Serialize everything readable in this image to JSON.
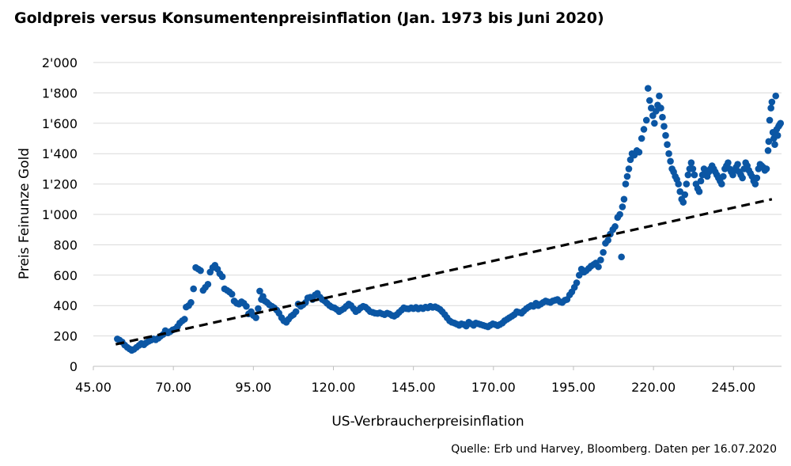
{
  "chart_data": {
    "type": "scatter",
    "title": "Goldpreis versus Konsumentenpreisinflation (Jan. 1973 bis Juni 2020)",
    "xlabel": "US-Verbraucherpreisinflation",
    "ylabel": "Preis Feinunze Gold",
    "source": "Quelle: Erb und Harvey, Bloomberg. Daten per 16.07.2020",
    "xlim": [
      45,
      260
    ],
    "ylim": [
      0,
      2000
    ],
    "x_ticks": [
      45,
      70,
      95,
      120,
      145,
      170,
      195,
      220,
      245
    ],
    "x_tick_labels": [
      "45.00",
      "70.00",
      "95.00",
      "120.00",
      "145.00",
      "170.00",
      "195.00",
      "220.00",
      "245.00"
    ],
    "y_ticks": [
      0,
      200,
      400,
      600,
      800,
      1000,
      1200,
      1400,
      1600,
      1800,
      2000
    ],
    "y_tick_labels": [
      "0",
      "200",
      "400",
      "600",
      "800",
      "1'000",
      "1'200",
      "1'400",
      "1'600",
      "1'800",
      "2'000"
    ],
    "grid": "horizontal",
    "marker_color": "#0b56a4",
    "trendline": {
      "style": "dashed",
      "color": "#000000",
      "x": [
        52,
        257
      ],
      "y": [
        145,
        1100
      ]
    },
    "points": [
      [
        52.5,
        180
      ],
      [
        53.2,
        172
      ],
      [
        54.0,
        160
      ],
      [
        54.8,
        140
      ],
      [
        55.6,
        125
      ],
      [
        56.3,
        115
      ],
      [
        57.0,
        105
      ],
      [
        57.7,
        112
      ],
      [
        58.5,
        125
      ],
      [
        59.3,
        138
      ],
      [
        60.0,
        150
      ],
      [
        60.8,
        142
      ],
      [
        61.5,
        155
      ],
      [
        62.3,
        165
      ],
      [
        63.0,
        172
      ],
      [
        63.8,
        180
      ],
      [
        64.5,
        175
      ],
      [
        65.3,
        185
      ],
      [
        66.0,
        198
      ],
      [
        66.8,
        210
      ],
      [
        67.5,
        235
      ],
      [
        68.3,
        220
      ],
      [
        69.0,
        228
      ],
      [
        69.8,
        240
      ],
      [
        70.5,
        245
      ],
      [
        71.3,
        262
      ],
      [
        72.0,
        285
      ],
      [
        72.8,
        300
      ],
      [
        73.5,
        310
      ],
      [
        74.0,
        390
      ],
      [
        74.8,
        400
      ],
      [
        75.5,
        420
      ],
      [
        76.3,
        510
      ],
      [
        77.0,
        650
      ],
      [
        77.8,
        640
      ],
      [
        78.5,
        630
      ],
      [
        79.3,
        500
      ],
      [
        80.0,
        520
      ],
      [
        80.8,
        540
      ],
      [
        81.5,
        620
      ],
      [
        82.3,
        650
      ],
      [
        83.0,
        665
      ],
      [
        83.8,
        640
      ],
      [
        84.5,
        610
      ],
      [
        85.3,
        590
      ],
      [
        86.0,
        510
      ],
      [
        86.8,
        500
      ],
      [
        87.5,
        490
      ],
      [
        88.3,
        475
      ],
      [
        89.0,
        430
      ],
      [
        89.8,
        415
      ],
      [
        90.5,
        410
      ],
      [
        91.3,
        425
      ],
      [
        92.0,
        415
      ],
      [
        92.8,
        395
      ],
      [
        93.5,
        345
      ],
      [
        94.3,
        360
      ],
      [
        95.0,
        335
      ],
      [
        95.8,
        320
      ],
      [
        96.5,
        380
      ],
      [
        97.0,
        495
      ],
      [
        97.5,
        440
      ],
      [
        98.0,
        460
      ],
      [
        98.6,
        430
      ],
      [
        99.3,
        420
      ],
      [
        100.0,
        405
      ],
      [
        100.8,
        395
      ],
      [
        101.5,
        385
      ],
      [
        102.3,
        370
      ],
      [
        103.0,
        350
      ],
      [
        103.8,
        320
      ],
      [
        104.5,
        300
      ],
      [
        105.3,
        290
      ],
      [
        106.0,
        310
      ],
      [
        106.8,
        330
      ],
      [
        107.5,
        340
      ],
      [
        108.3,
        360
      ],
      [
        109.0,
        410
      ],
      [
        109.8,
        395
      ],
      [
        110.5,
        405
      ],
      [
        111.3,
        420
      ],
      [
        112.0,
        450
      ],
      [
        112.8,
        455
      ],
      [
        113.5,
        440
      ],
      [
        114.3,
        470
      ],
      [
        115.0,
        480
      ],
      [
        115.8,
        455
      ],
      [
        116.5,
        440
      ],
      [
        117.3,
        430
      ],
      [
        118.0,
        415
      ],
      [
        118.8,
        400
      ],
      [
        119.5,
        390
      ],
      [
        120.3,
        385
      ],
      [
        121.0,
        375
      ],
      [
        121.8,
        360
      ],
      [
        122.5,
        370
      ],
      [
        123.3,
        380
      ],
      [
        124.0,
        395
      ],
      [
        124.8,
        410
      ],
      [
        125.5,
        400
      ],
      [
        126.3,
        380
      ],
      [
        127.0,
        360
      ],
      [
        127.8,
        370
      ],
      [
        128.5,
        385
      ],
      [
        129.3,
        395
      ],
      [
        130.0,
        390
      ],
      [
        130.8,
        375
      ],
      [
        131.5,
        360
      ],
      [
        132.3,
        355
      ],
      [
        133.0,
        350
      ],
      [
        133.8,
        348
      ],
      [
        134.5,
        352
      ],
      [
        135.3,
        345
      ],
      [
        136.0,
        340
      ],
      [
        136.8,
        350
      ],
      [
        137.5,
        345
      ],
      [
        138.3,
        335
      ],
      [
        139.0,
        330
      ],
      [
        139.8,
        340
      ],
      [
        140.5,
        355
      ],
      [
        141.3,
        370
      ],
      [
        142.0,
        385
      ],
      [
        142.8,
        380
      ],
      [
        143.5,
        378
      ],
      [
        144.3,
        385
      ],
      [
        145.0,
        380
      ],
      [
        145.8,
        388
      ],
      [
        146.5,
        378
      ],
      [
        147.3,
        385
      ],
      [
        148.0,
        380
      ],
      [
        148.8,
        390
      ],
      [
        149.5,
        385
      ],
      [
        150.3,
        395
      ],
      [
        151.0,
        388
      ],
      [
        151.8,
        392
      ],
      [
        152.5,
        385
      ],
      [
        153.3,
        375
      ],
      [
        154.0,
        360
      ],
      [
        154.8,
        340
      ],
      [
        155.5,
        320
      ],
      [
        156.3,
        300
      ],
      [
        157.0,
        290
      ],
      [
        157.8,
        285
      ],
      [
        158.5,
        278
      ],
      [
        159.3,
        270
      ],
      [
        160.0,
        280
      ],
      [
        160.8,
        275
      ],
      [
        161.5,
        265
      ],
      [
        162.3,
        290
      ],
      [
        163.0,
        280
      ],
      [
        163.8,
        270
      ],
      [
        164.5,
        285
      ],
      [
        165.3,
        280
      ],
      [
        166.0,
        275
      ],
      [
        166.8,
        270
      ],
      [
        167.5,
        265
      ],
      [
        168.3,
        260
      ],
      [
        169.0,
        270
      ],
      [
        169.8,
        280
      ],
      [
        170.5,
        275
      ],
      [
        171.3,
        268
      ],
      [
        172.0,
        275
      ],
      [
        172.8,
        285
      ],
      [
        173.5,
        300
      ],
      [
        174.3,
        310
      ],
      [
        175.0,
        320
      ],
      [
        175.8,
        330
      ],
      [
        176.5,
        340
      ],
      [
        177.3,
        360
      ],
      [
        178.0,
        355
      ],
      [
        178.8,
        350
      ],
      [
        179.5,
        365
      ],
      [
        180.3,
        380
      ],
      [
        181.0,
        390
      ],
      [
        181.8,
        400
      ],
      [
        182.5,
        395
      ],
      [
        183.3,
        415
      ],
      [
        184.0,
        400
      ],
      [
        184.8,
        410
      ],
      [
        185.5,
        420
      ],
      [
        186.3,
        430
      ],
      [
        187.0,
        425
      ],
      [
        187.8,
        420
      ],
      [
        188.5,
        430
      ],
      [
        189.3,
        435
      ],
      [
        190.0,
        440
      ],
      [
        190.8,
        425
      ],
      [
        191.5,
        420
      ],
      [
        192.3,
        435
      ],
      [
        193.0,
        440
      ],
      [
        193.8,
        470
      ],
      [
        194.5,
        490
      ],
      [
        195.3,
        520
      ],
      [
        196.0,
        550
      ],
      [
        196.8,
        600
      ],
      [
        197.5,
        640
      ],
      [
        198.3,
        620
      ],
      [
        199.0,
        630
      ],
      [
        199.8,
        645
      ],
      [
        200.5,
        660
      ],
      [
        201.3,
        670
      ],
      [
        202.0,
        680
      ],
      [
        202.8,
        655
      ],
      [
        203.5,
        700
      ],
      [
        204.3,
        750
      ],
      [
        205.0,
        810
      ],
      [
        205.8,
        830
      ],
      [
        206.5,
        870
      ],
      [
        207.3,
        900
      ],
      [
        208.0,
        920
      ],
      [
        208.8,
        980
      ],
      [
        209.5,
        1000
      ],
      [
        210.0,
        720
      ],
      [
        210.3,
        1050
      ],
      [
        210.8,
        1100
      ],
      [
        211.3,
        1200
      ],
      [
        211.8,
        1250
      ],
      [
        212.3,
        1300
      ],
      [
        212.8,
        1360
      ],
      [
        213.3,
        1400
      ],
      [
        214.0,
        1390
      ],
      [
        214.8,
        1420
      ],
      [
        215.5,
        1410
      ],
      [
        216.3,
        1500
      ],
      [
        217.0,
        1560
      ],
      [
        217.8,
        1620
      ],
      [
        218.3,
        1830
      ],
      [
        218.8,
        1750
      ],
      [
        219.3,
        1700
      ],
      [
        219.8,
        1650
      ],
      [
        220.3,
        1600
      ],
      [
        220.8,
        1680
      ],
      [
        221.3,
        1720
      ],
      [
        221.8,
        1780
      ],
      [
        222.3,
        1700
      ],
      [
        222.8,
        1640
      ],
      [
        223.3,
        1580
      ],
      [
        223.8,
        1520
      ],
      [
        224.3,
        1460
      ],
      [
        224.8,
        1400
      ],
      [
        225.3,
        1350
      ],
      [
        225.8,
        1300
      ],
      [
        226.3,
        1280
      ],
      [
        226.8,
        1250
      ],
      [
        227.3,
        1230
      ],
      [
        227.8,
        1200
      ],
      [
        228.3,
        1150
      ],
      [
        228.8,
        1100
      ],
      [
        229.3,
        1080
      ],
      [
        229.8,
        1130
      ],
      [
        230.3,
        1200
      ],
      [
        230.8,
        1260
      ],
      [
        231.3,
        1300
      ],
      [
        231.8,
        1340
      ],
      [
        232.3,
        1300
      ],
      [
        232.8,
        1260
      ],
      [
        233.3,
        1200
      ],
      [
        233.8,
        1170
      ],
      [
        234.3,
        1150
      ],
      [
        234.8,
        1220
      ],
      [
        235.3,
        1260
      ],
      [
        235.8,
        1300
      ],
      [
        236.3,
        1270
      ],
      [
        236.8,
        1250
      ],
      [
        237.3,
        1280
      ],
      [
        237.8,
        1300
      ],
      [
        238.3,
        1320
      ],
      [
        238.8,
        1300
      ],
      [
        239.3,
        1280
      ],
      [
        239.8,
        1260
      ],
      [
        240.3,
        1240
      ],
      [
        240.8,
        1220
      ],
      [
        241.3,
        1200
      ],
      [
        241.8,
        1250
      ],
      [
        242.3,
        1300
      ],
      [
        242.8,
        1320
      ],
      [
        243.3,
        1340
      ],
      [
        243.8,
        1300
      ],
      [
        244.3,
        1280
      ],
      [
        244.8,
        1260
      ],
      [
        245.3,
        1290
      ],
      [
        245.8,
        1310
      ],
      [
        246.3,
        1330
      ],
      [
        246.8,
        1280
      ],
      [
        247.3,
        1260
      ],
      [
        247.8,
        1240
      ],
      [
        248.3,
        1300
      ],
      [
        248.8,
        1340
      ],
      [
        249.3,
        1320
      ],
      [
        249.8,
        1290
      ],
      [
        250.3,
        1270
      ],
      [
        250.8,
        1250
      ],
      [
        251.3,
        1220
      ],
      [
        251.8,
        1200
      ],
      [
        252.3,
        1240
      ],
      [
        252.8,
        1300
      ],
      [
        253.3,
        1330
      ],
      [
        253.8,
        1320
      ],
      [
        254.3,
        1310
      ],
      [
        254.8,
        1290
      ],
      [
        255.3,
        1300
      ],
      [
        255.8,
        1420
      ],
      [
        256.0,
        1480
      ],
      [
        256.3,
        1620
      ],
      [
        256.7,
        1700
      ],
      [
        257.0,
        1740
      ],
      [
        257.3,
        1540
      ],
      [
        257.6,
        1500
      ],
      [
        257.9,
        1460
      ],
      [
        258.2,
        1780
      ],
      [
        258.5,
        1560
      ],
      [
        258.8,
        1520
      ],
      [
        259.1,
        1580
      ],
      [
        259.4,
        1590
      ],
      [
        259.7,
        1600
      ]
    ]
  }
}
